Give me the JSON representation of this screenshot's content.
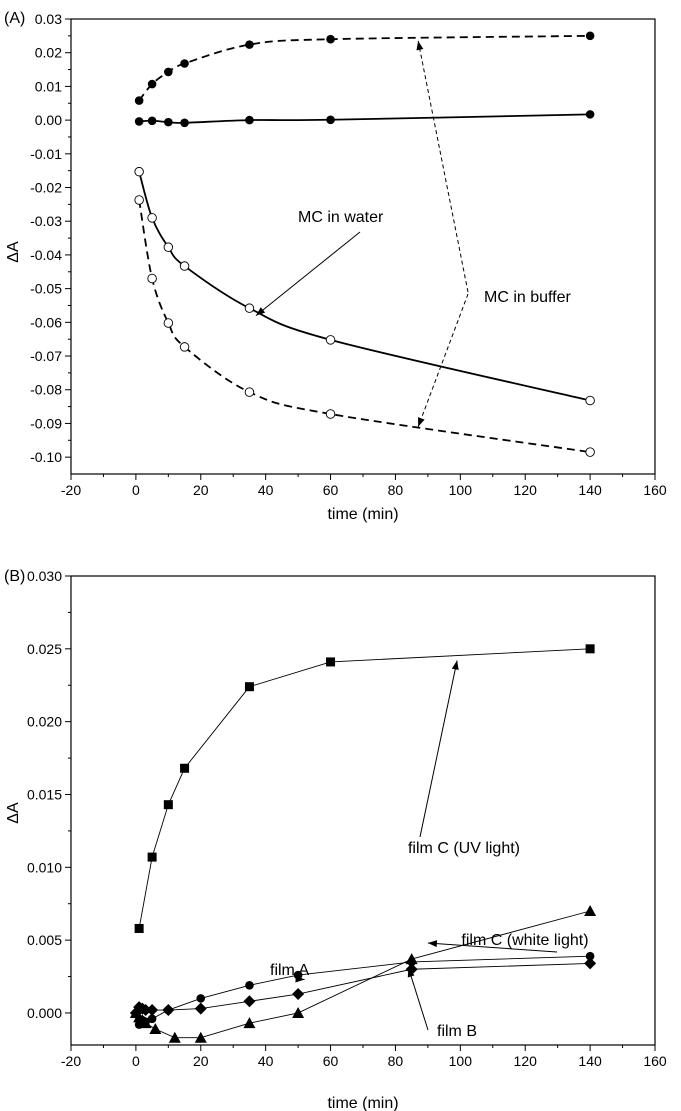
{
  "chart_data": [
    {
      "type": "line",
      "panel_label": "(A)",
      "xlabel": "time (min)",
      "ylabel": "ΔA",
      "xlim": [
        -20,
        160
      ],
      "ylim": [
        -0.105,
        0.03
      ],
      "xticks": [
        -20,
        0,
        20,
        40,
        60,
        80,
        100,
        120,
        140,
        160
      ],
      "yticks": [
        -0.1,
        -0.09,
        -0.08,
        -0.07,
        -0.06,
        -0.05,
        -0.04,
        -0.03,
        -0.02,
        -0.01,
        0.0,
        0.01,
        0.02,
        0.03
      ],
      "xtick_labels": [
        "-20",
        "0",
        "20",
        "40",
        "60",
        "80",
        "100",
        "120",
        "140",
        "160"
      ],
      "ytick_labels": [
        "-0.10",
        "-0.09",
        "-0.08",
        "-0.07",
        "-0.06",
        "-0.05",
        "-0.04",
        "-0.03",
        "-0.02",
        "-0.01",
        "0.00",
        "0.01",
        "0.02",
        "0.03"
      ],
      "grid": false,
      "series": [
        {
          "marker": "filled-circle",
          "line": "dashed",
          "x": [
            1,
            5,
            10,
            15,
            35,
            60,
            140
          ],
          "y": [
            0.0058,
            0.0107,
            0.0143,
            0.0168,
            0.0224,
            0.024,
            0.025
          ]
        },
        {
          "marker": "filled-circle",
          "line": "solid",
          "x": [
            1,
            5,
            10,
            15,
            35,
            60,
            140
          ],
          "y": [
            -0.0004,
            -0.0002,
            -0.0006,
            -0.0008,
            0.0,
            0.0001,
            0.0017
          ]
        },
        {
          "marker": "open-circle",
          "line": "solid",
          "x": [
            1,
            5,
            10,
            15,
            35,
            60,
            140
          ],
          "y": [
            -0.0153,
            -0.029,
            -0.0377,
            -0.0433,
            -0.0558,
            -0.0652,
            -0.0832
          ]
        },
        {
          "marker": "open-circle",
          "line": "dashed",
          "x": [
            1,
            5,
            10,
            15,
            35,
            60,
            140
          ],
          "y": [
            -0.0237,
            -0.047,
            -0.0602,
            -0.0673,
            -0.0807,
            -0.0872,
            -0.0985
          ]
        }
      ],
      "annotations": [
        {
          "text": "MC in water",
          "points_to": [
            [
              37,
              -0.058
            ]
          ],
          "arrow": "solid"
        },
        {
          "text": "MC in buffer",
          "points_to": [
            [
              87,
              0.0235
            ],
            [
              87,
              -0.091
            ]
          ],
          "arrow": "dashed"
        }
      ]
    },
    {
      "type": "line",
      "panel_label": "(B)",
      "xlabel": "time (min)",
      "ylabel": "ΔA",
      "xlim": [
        -20,
        160
      ],
      "ylim": [
        -0.0022,
        0.03
      ],
      "xticks": [
        -20,
        0,
        20,
        40,
        60,
        80,
        100,
        120,
        140,
        160
      ],
      "yticks": [
        0.0,
        0.005,
        0.01,
        0.015,
        0.02,
        0.025,
        0.03
      ],
      "xtick_labels": [
        "-20",
        "0",
        "20",
        "40",
        "60",
        "80",
        "100",
        "120",
        "140",
        "160"
      ],
      "ytick_labels": [
        "0.000",
        "0.005",
        "0.010",
        "0.015",
        "0.020",
        "0.025",
        "0.030"
      ],
      "grid": false,
      "series": [
        {
          "marker": "square",
          "line": "solid",
          "x": [
            1,
            5,
            10,
            15,
            35,
            60,
            140
          ],
          "y": [
            0.0058,
            0.0107,
            0.0143,
            0.0168,
            0.0224,
            0.0241,
            0.025
          ]
        },
        {
          "marker": "circle",
          "line": "solid",
          "x": [
            0,
            1,
            2,
            3,
            5,
            10,
            20,
            35,
            50,
            85,
            140
          ],
          "y": [
            0.0,
            -0.0008,
            -0.0005,
            -0.0006,
            -0.0004,
            0.0002,
            0.001,
            0.0019,
            0.0026,
            0.0035,
            0.0039
          ]
        },
        {
          "marker": "diamond",
          "line": "solid",
          "x": [
            0,
            1,
            2,
            3,
            5,
            10,
            20,
            35,
            50,
            85,
            140
          ],
          "y": [
            0.0,
            0.0004,
            0.0003,
            0.0002,
            0.0002,
            0.0002,
            0.0003,
            0.0008,
            0.0013,
            0.003,
            0.0034
          ]
        },
        {
          "marker": "triangle",
          "line": "solid",
          "x": [
            0,
            1,
            2,
            3,
            6,
            12,
            20,
            35,
            50,
            85,
            140
          ],
          "y": [
            0.0,
            -0.0003,
            -0.0005,
            -0.0007,
            -0.0011,
            -0.0017,
            -0.0017,
            -0.0007,
            0.0,
            0.0037,
            0.007
          ]
        }
      ],
      "annotations": [
        {
          "text": "film C (UV light)",
          "points_to": [
            [
              99,
              0.0242
            ]
          ],
          "arrow": "solid"
        },
        {
          "text": "film C (white light)",
          "points_to": [
            [
              90,
              0.0048
            ]
          ],
          "arrow": "solid"
        },
        {
          "text": "film A",
          "points_to": [
            [
              52,
              0.0023
            ]
          ],
          "arrow": "solid"
        },
        {
          "text": "film B",
          "points_to": [
            [
              84,
              0.0031
            ]
          ],
          "arrow": "solid"
        }
      ]
    }
  ]
}
